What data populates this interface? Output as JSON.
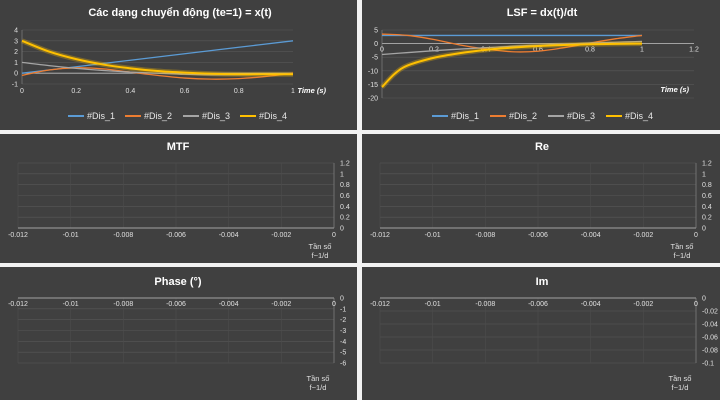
{
  "chart_data": [
    {
      "id": "xt",
      "type": "line",
      "title": "Các dạng chuyển động (te=1)  = x(t)",
      "xlabel": "Time (s)",
      "xlim": [
        0,
        1
      ],
      "ylim": [
        -1,
        4
      ],
      "xticks": [
        "0",
        "0.2",
        "0.4",
        "0.6",
        "0.8",
        "1"
      ],
      "yticks": [
        "-1",
        "0",
        "1",
        "2",
        "3",
        "4"
      ],
      "legend_position": "bottom",
      "series": [
        {
          "name": "#Dis_1",
          "color": "#5b9bd5",
          "x": [
            0,
            0.2,
            0.4,
            0.6,
            0.8,
            1
          ],
          "values": [
            0,
            0.6,
            1.2,
            1.8,
            2.4,
            3
          ]
        },
        {
          "name": "#Dis_2",
          "color": "#ed7d31",
          "x": [
            0,
            0.1,
            0.2,
            0.3,
            0.4,
            0.5,
            0.6,
            0.7,
            0.8,
            0.9,
            1
          ],
          "values": [
            -0.2,
            0.3,
            0.5,
            0.4,
            0.1,
            -0.2,
            -0.45,
            -0.55,
            -0.5,
            -0.3,
            0
          ]
        },
        {
          "name": "#Dis_3",
          "color": "#a5a5a5",
          "x": [
            0,
            0.1,
            0.2,
            0.3,
            0.4,
            0.5,
            0.6,
            0.7,
            0.8,
            0.9,
            1
          ],
          "values": [
            1,
            0.7,
            0.45,
            0.25,
            0.1,
            0,
            -0.1,
            -0.15,
            -0.15,
            -0.1,
            -0.05
          ]
        },
        {
          "name": "#Dis_4",
          "color": "#ffc000",
          "x": [
            0,
            0.1,
            0.2,
            0.3,
            0.4,
            0.5,
            0.6,
            0.7,
            0.8,
            0.9,
            1
          ],
          "values": [
            3,
            2,
            1.3,
            0.8,
            0.45,
            0.2,
            0.05,
            -0.05,
            -0.1,
            -0.1,
            -0.1
          ]
        }
      ]
    },
    {
      "id": "lsf",
      "type": "line",
      "title": "LSF = dx(t)/dt",
      "xlabel": "Time (s)",
      "xlim": [
        0,
        1.2
      ],
      "ylim": [
        -20,
        5
      ],
      "xticks": [
        "0",
        "0.2",
        "0.4",
        "0.6",
        "0.8",
        "1",
        "1.2"
      ],
      "yticks": [
        "-20",
        "-15",
        "-10",
        "-5",
        "0",
        "5"
      ],
      "legend_position": "bottom",
      "series": [
        {
          "name": "#Dis_1",
          "color": "#5b9bd5",
          "x": [
            0,
            0.5,
            1
          ],
          "values": [
            3,
            3,
            3
          ]
        },
        {
          "name": "#Dis_2",
          "color": "#ed7d31",
          "x": [
            0,
            0.1,
            0.2,
            0.3,
            0.4,
            0.5,
            0.6,
            0.7,
            0.8,
            0.9,
            1
          ],
          "values": [
            3.5,
            3,
            1.5,
            -0.5,
            -2,
            -3,
            -2.8,
            -1.5,
            0.2,
            1.8,
            3
          ]
        },
        {
          "name": "#Dis_3",
          "color": "#a5a5a5",
          "x": [
            0,
            0.1,
            0.2,
            0.3,
            0.4,
            0.5,
            0.6,
            0.7,
            0.8,
            0.9,
            1
          ],
          "values": [
            -4,
            -3.3,
            -2.6,
            -2,
            -1.5,
            -1,
            -0.6,
            -0.2,
            0.2,
            0.5,
            0.8
          ]
        },
        {
          "name": "#Dis_4",
          "color": "#ffc000",
          "x": [
            0,
            0.05,
            0.1,
            0.2,
            0.3,
            0.4,
            0.5,
            0.6,
            0.7,
            0.8,
            0.9,
            1
          ],
          "values": [
            -16,
            -11,
            -8,
            -5.2,
            -3.5,
            -2.3,
            -1.5,
            -0.9,
            -0.5,
            -0.25,
            -0.1,
            0
          ]
        }
      ]
    },
    {
      "id": "mtf",
      "type": "line",
      "title": "MTF",
      "xlabel_lines": [
        "Tần số",
        "f~1/d"
      ],
      "xlim": [
        -0.012,
        0
      ],
      "ylim": [
        0,
        1.2
      ],
      "xticks": [
        "-0.012",
        "-0.01",
        "-0.008",
        "-0.006",
        "-0.004",
        "-0.002",
        "0"
      ],
      "yticks": [
        "0",
        "0.2",
        "0.4",
        "0.6",
        "0.8",
        "1",
        "1.2"
      ],
      "series": []
    },
    {
      "id": "re",
      "type": "line",
      "title": "Re",
      "xlabel_lines": [
        "Tần số",
        "f~1/d"
      ],
      "xlim": [
        -0.012,
        0
      ],
      "ylim": [
        0,
        1.2
      ],
      "xticks": [
        "-0.012",
        "-0.01",
        "-0.008",
        "-0.006",
        "-0.004",
        "-0.002",
        "0"
      ],
      "yticks": [
        "0",
        "0.2",
        "0.4",
        "0.6",
        "0.8",
        "1",
        "1.2"
      ],
      "series": []
    },
    {
      "id": "phase",
      "type": "line",
      "title": "Phase (°)",
      "xlabel_lines": [
        "Tần số",
        "f~1/d"
      ],
      "xlim": [
        -0.012,
        0
      ],
      "ylim": [
        -6,
        0
      ],
      "xticks": [
        "-0.012",
        "-0.01",
        "-0.008",
        "-0.006",
        "-0.004",
        "-0.002",
        "0"
      ],
      "yticks": [
        "-6",
        "-5",
        "-4",
        "-3",
        "-2",
        "-1",
        "0"
      ],
      "series": []
    },
    {
      "id": "im",
      "type": "line",
      "title": "Im",
      "xlabel_lines": [
        "Tần số",
        "f~1/d"
      ],
      "xlim": [
        -0.012,
        0
      ],
      "ylim": [
        -0.1,
        0
      ],
      "xticks": [
        "-0.012",
        "-0.01",
        "-0.008",
        "-0.006",
        "-0.004",
        "-0.002",
        "0"
      ],
      "yticks": [
        "-0.1",
        "-0.08",
        "-0.06",
        "-0.04",
        "-0.02",
        "0"
      ],
      "series": []
    }
  ]
}
